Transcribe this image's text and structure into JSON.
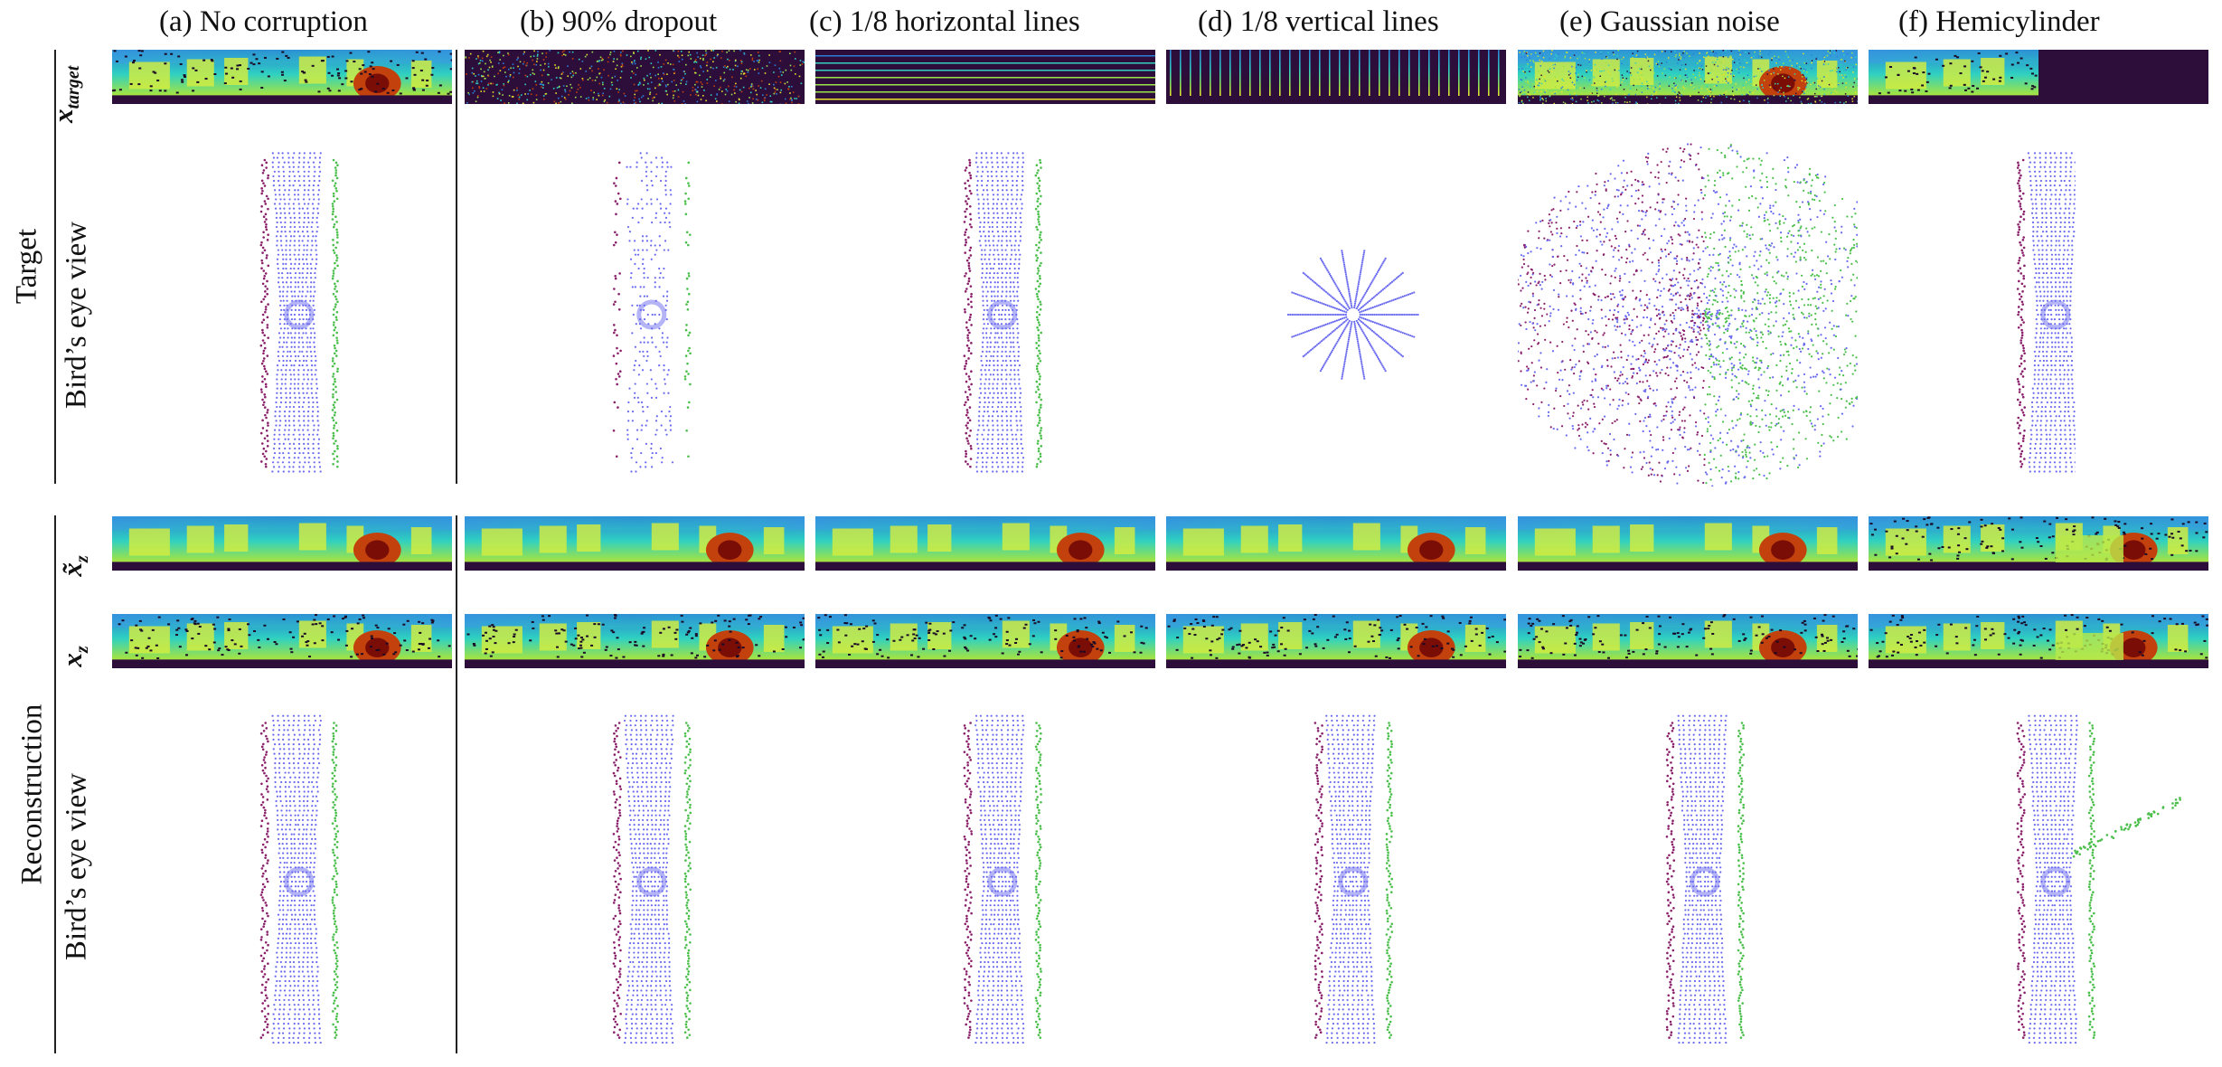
{
  "columns": [
    {
      "label": "(a) No corruption"
    },
    {
      "label": "(b) 90% dropout"
    },
    {
      "label": "(c) 1/8 horizontal lines"
    },
    {
      "label": "(d) 1/8 vertical lines"
    },
    {
      "label": "(e) Gaussian noise"
    },
    {
      "label": "(f) Hemicylinder"
    }
  ],
  "groups": {
    "target": "Target",
    "reconstruction": "Reconstruction"
  },
  "rows": {
    "x_target": {
      "main": "x",
      "sub": "target"
    },
    "bev_target": "Bird’s eye view",
    "x_tilde_z": {
      "main": "x̃",
      "sub": "z"
    },
    "x_z": {
      "main": "x",
      "sub": "z"
    },
    "bev_recon": "Bird’s eye view"
  },
  "colors": {
    "colormap_dark": "#2d0e3b",
    "colormap_blue": "#2b7fd9",
    "colormap_cyan": "#2fd1c1",
    "colormap_green": "#9be24a",
    "colormap_yellow": "#e9e12b",
    "colormap_red": "#b5200e",
    "bev_blue": "#6a6af0",
    "bev_purple": "#8a1f6a",
    "bev_green": "#4bbf4b"
  }
}
